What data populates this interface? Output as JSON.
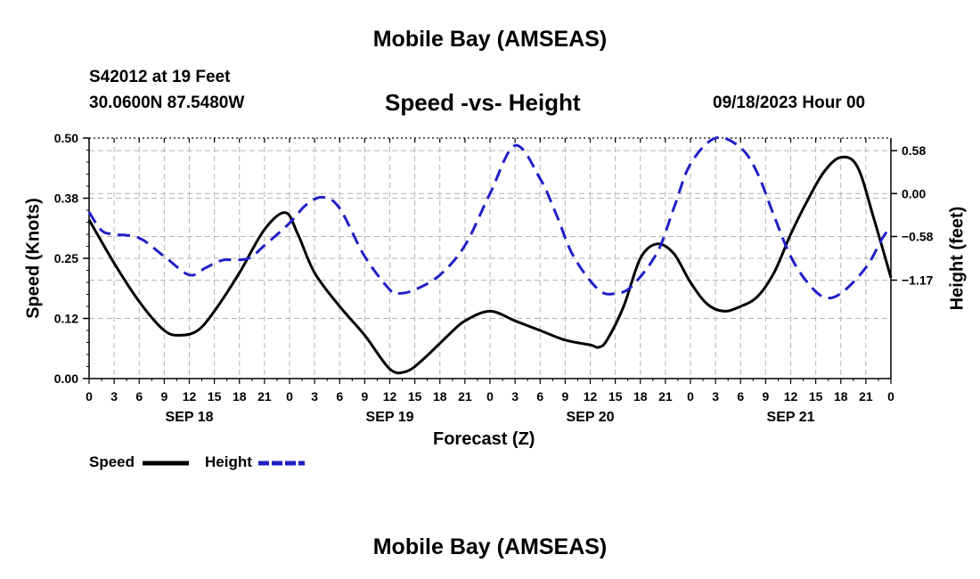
{
  "header": {
    "main_title": "Mobile Bay (AMSEAS)",
    "station": "S42012 at 19 Feet",
    "coords": "30.0600N  87.5480W",
    "subtitle": "Speed -vs- Height",
    "datetime": "09/18/2023 Hour 00",
    "bottom_title": "Mobile Bay (AMSEAS)"
  },
  "chart_data": {
    "type": "line",
    "title": "Speed -vs- Height",
    "xlabel": "Forecast (Z)",
    "ylabel_left": "Speed (Knots)",
    "ylabel_right": "Height (feet)",
    "x_range_hours": [
      0,
      96
    ],
    "x_tick_step_hours": 3,
    "x_tick_labels": [
      "0",
      "3",
      "6",
      "9",
      "12",
      "15",
      "18",
      "21",
      "0",
      "3",
      "6",
      "9",
      "12",
      "15",
      "18",
      "21",
      "0",
      "3",
      "6",
      "9",
      "12",
      "15",
      "18",
      "21",
      "0",
      "3",
      "6",
      "9",
      "12",
      "15",
      "18",
      "21",
      "0"
    ],
    "day_labels": [
      {
        "label": "SEP 18",
        "hour": 12
      },
      {
        "label": "SEP 19",
        "hour": 36
      },
      {
        "label": "SEP 20",
        "hour": 60
      },
      {
        "label": "SEP 21",
        "hour": 84
      }
    ],
    "left_axis": {
      "ylim": [
        0,
        0.5
      ],
      "ticks": [
        0,
        0.125,
        0.25,
        0.375,
        0.5
      ],
      "tick_labels": [
        "0.00",
        "0.12",
        "0.25",
        "0.38",
        "0.50"
      ]
    },
    "right_axis": {
      "ylim": [
        -2.5,
        0.75
      ],
      "ticks": [
        -1.17,
        -0.58,
        0.0,
        0.58
      ],
      "tick_labels": [
        "−1.17",
        "−0.58",
        "0.00",
        "0.58"
      ]
    },
    "grid": true,
    "legend": [
      {
        "name": "Speed",
        "color": "#000000",
        "style": "solid"
      },
      {
        "name": "Height",
        "color": "#1f1fc8",
        "style": "dashed"
      }
    ],
    "series": [
      {
        "name": "Speed",
        "axis": "left",
        "color": "#000000",
        "x": [
          0,
          3,
          6,
          9,
          11,
          13,
          15,
          18,
          21,
          23.5,
          25,
          27,
          30,
          33,
          36,
          38,
          40,
          43,
          45,
          48,
          51,
          54,
          57,
          60,
          61,
          62,
          64,
          66,
          68,
          70,
          72,
          74,
          76,
          78,
          80,
          82,
          84,
          86,
          88,
          90,
          92,
          94,
          96
        ],
        "y": [
          0.33,
          0.24,
          0.16,
          0.1,
          0.09,
          0.1,
          0.14,
          0.22,
          0.31,
          0.345,
          0.3,
          0.22,
          0.15,
          0.09,
          0.02,
          0.015,
          0.04,
          0.09,
          0.12,
          0.14,
          0.12,
          0.1,
          0.08,
          0.07,
          0.065,
          0.08,
          0.15,
          0.25,
          0.28,
          0.26,
          0.2,
          0.155,
          0.14,
          0.15,
          0.17,
          0.22,
          0.3,
          0.37,
          0.43,
          0.46,
          0.44,
          0.33,
          0.21
        ]
      },
      {
        "name": "Height",
        "axis": "right",
        "color": "#1f1fc8",
        "x": [
          0,
          1.5,
          3,
          6,
          9,
          12,
          14,
          16,
          19,
          21,
          24,
          26,
          28,
          30,
          33,
          36,
          37,
          39,
          42,
          45,
          48,
          51,
          54,
          56,
          58,
          61,
          63,
          65,
          68,
          70,
          72,
          75,
          78,
          80,
          82,
          84,
          86,
          88,
          90,
          93,
          95,
          96
        ],
        "y": [
          -0.25,
          -0.5,
          -0.55,
          -0.6,
          -0.85,
          -1.1,
          -1.0,
          -0.9,
          -0.88,
          -0.7,
          -0.4,
          -0.15,
          -0.05,
          -0.2,
          -0.85,
          -1.3,
          -1.35,
          -1.3,
          -1.1,
          -0.7,
          0.0,
          0.65,
          0.2,
          -0.3,
          -0.85,
          -1.3,
          -1.35,
          -1.25,
          -0.8,
          -0.2,
          0.4,
          0.75,
          0.62,
          0.28,
          -0.3,
          -0.85,
          -1.2,
          -1.4,
          -1.35,
          -1.0,
          -0.6,
          -0.45
        ]
      }
    ]
  }
}
